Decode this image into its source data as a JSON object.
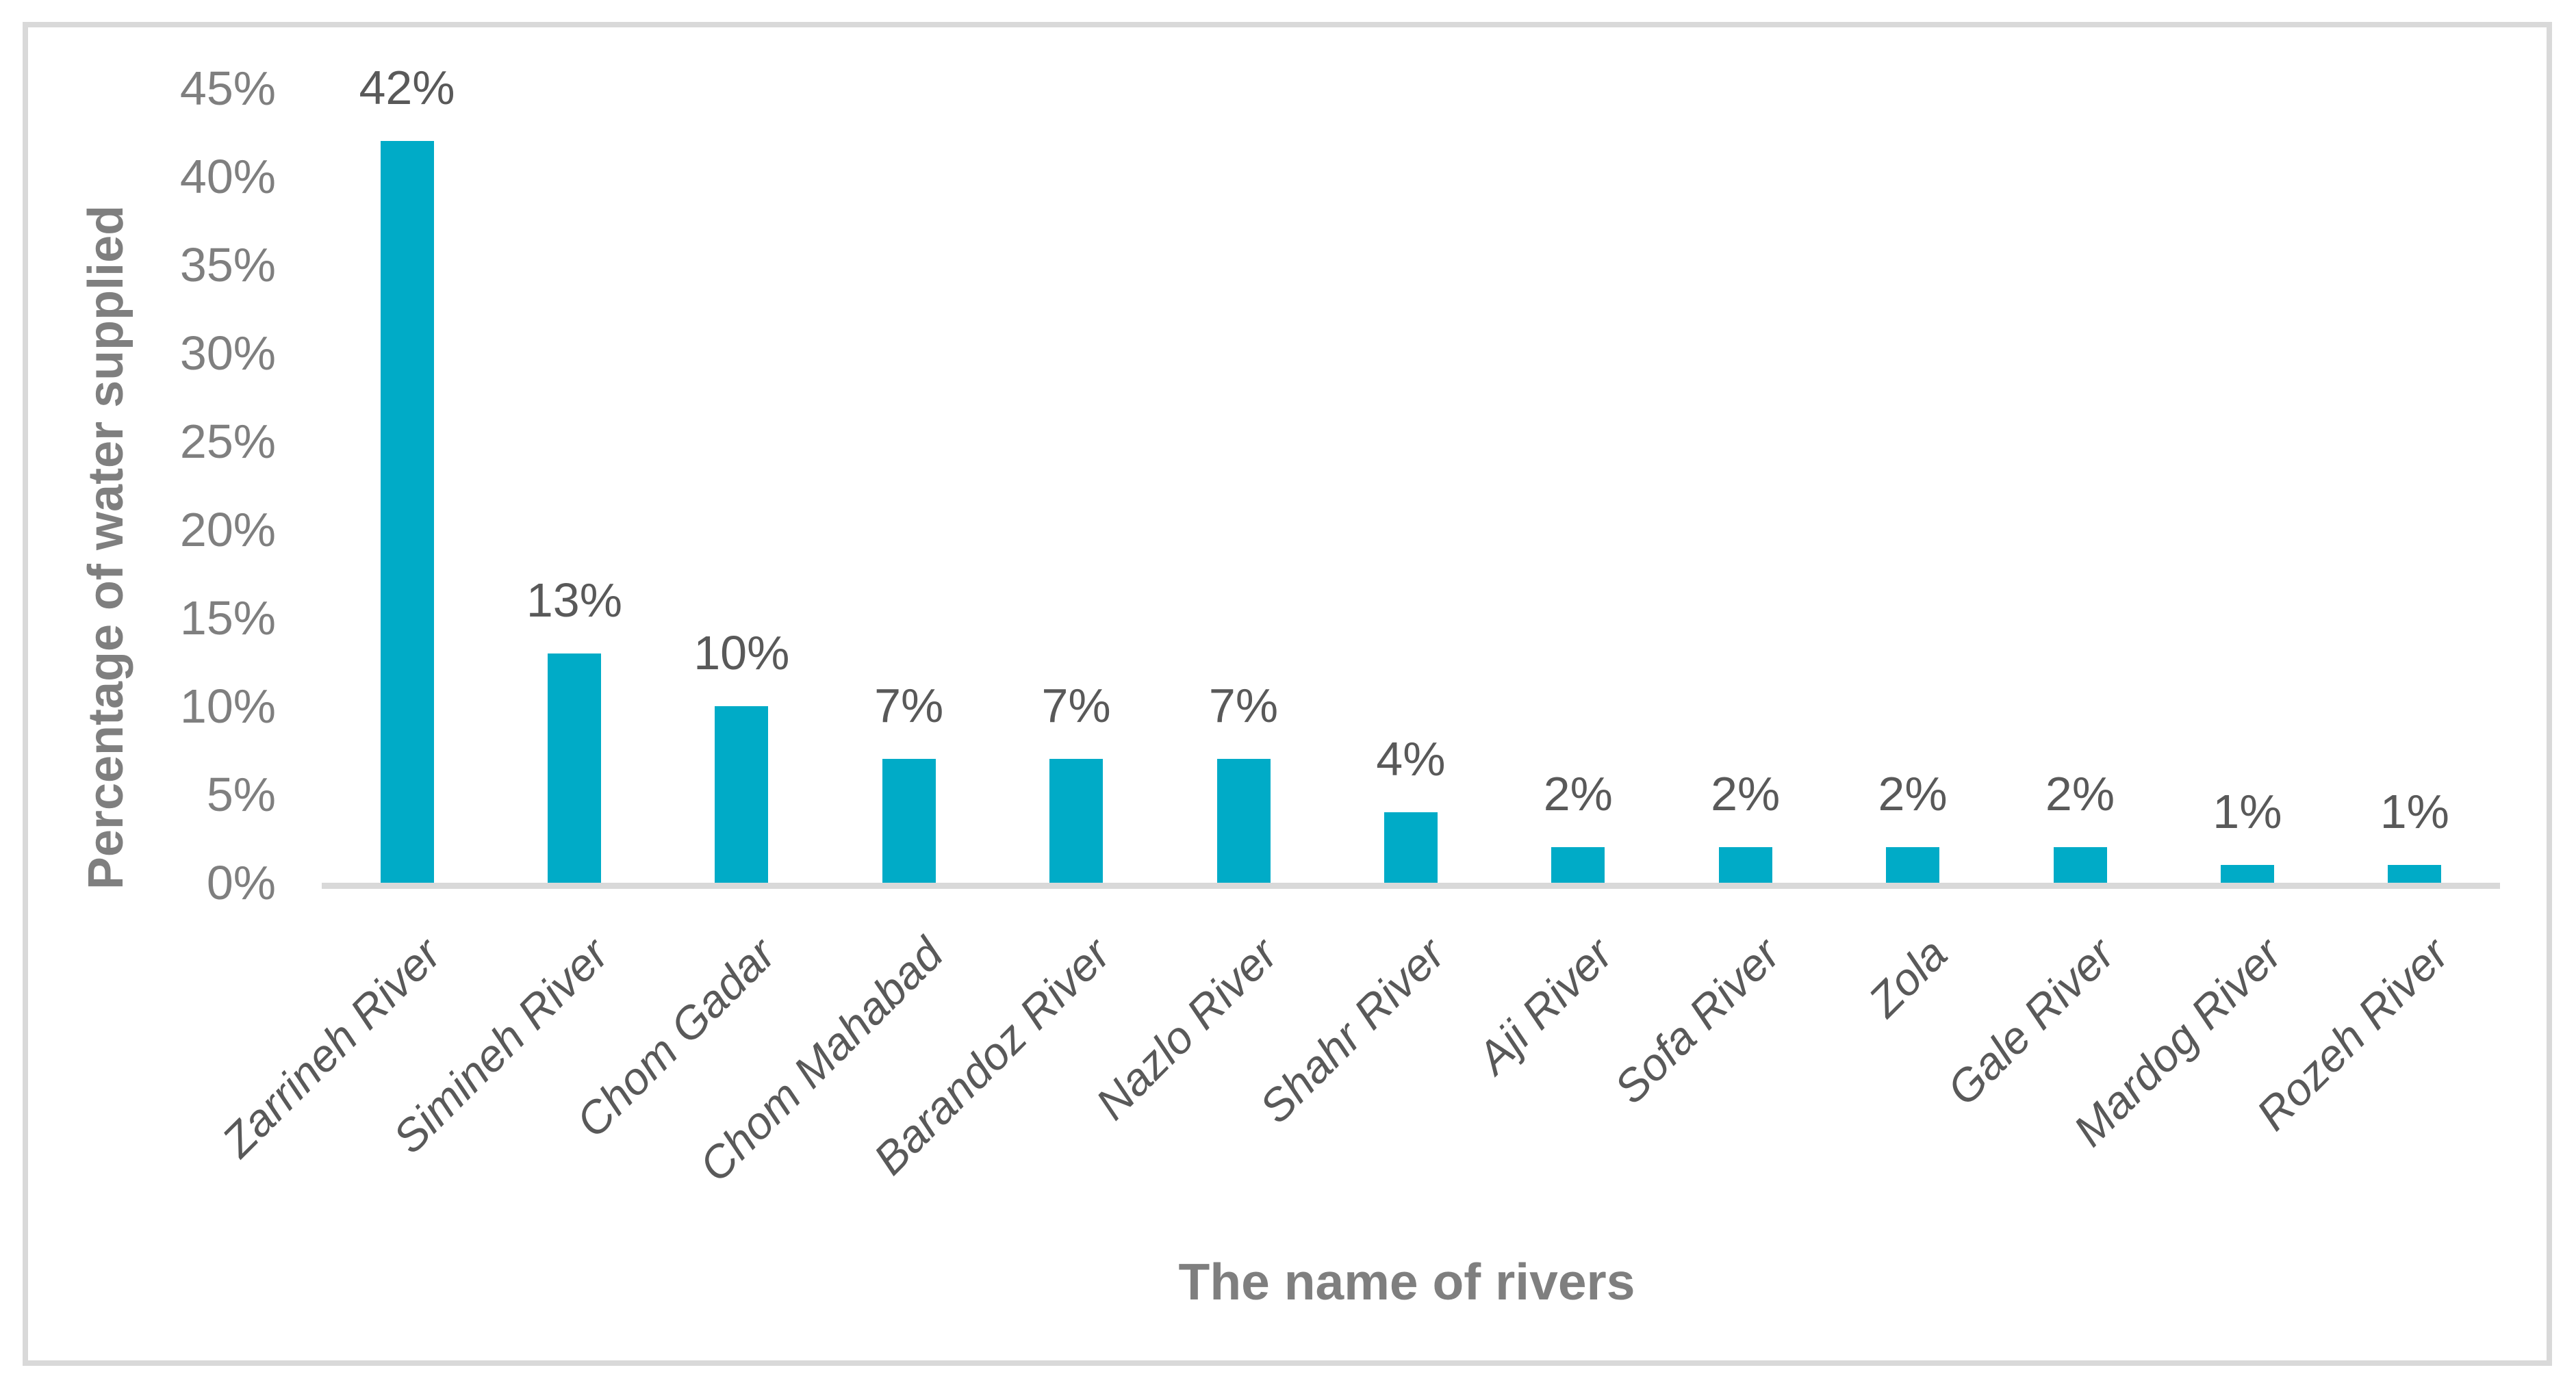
{
  "chart_data": {
    "type": "bar",
    "title": "",
    "categories": [
      "Zarrineh River",
      "Simineh River",
      "Chom Gadar",
      "Chom Mahabad",
      "Barandoz River",
      "Nazlo River",
      "Shahr River",
      "Aji River",
      "Sofa River",
      "Zola",
      "Gale River",
      "Mardog River",
      "Rozeh River"
    ],
    "values": [
      42,
      13,
      10,
      7,
      7,
      7,
      4,
      2,
      2,
      2,
      2,
      1,
      1
    ],
    "data_labels": [
      "42%",
      "13%",
      "10%",
      "7%",
      "7%",
      "7%",
      "4%",
      "2%",
      "2%",
      "2%",
      "2%",
      "1%",
      "1%"
    ],
    "xlabel": "The name of rivers",
    "ylabel": "Percentage of water supplied",
    "y_ticks": [
      "0%",
      "5%",
      "10%",
      "15%",
      "20%",
      "25%",
      "30%",
      "35%",
      "40%",
      "45%"
    ],
    "y_tick_values": [
      0,
      5,
      10,
      15,
      20,
      25,
      30,
      35,
      40,
      45
    ],
    "ylim": [
      0,
      45
    ],
    "grid": "off",
    "legend": "none",
    "colors": {
      "bar": "#00ABC7",
      "axis_line": "#D9D9D9",
      "frame_border": "#D9D9D9",
      "tick_label": "#7F7F7F",
      "axis_title": "#7F7F7F",
      "data_label": "#595959",
      "category_label": "#595959",
      "background": "#FFFFFF"
    }
  }
}
